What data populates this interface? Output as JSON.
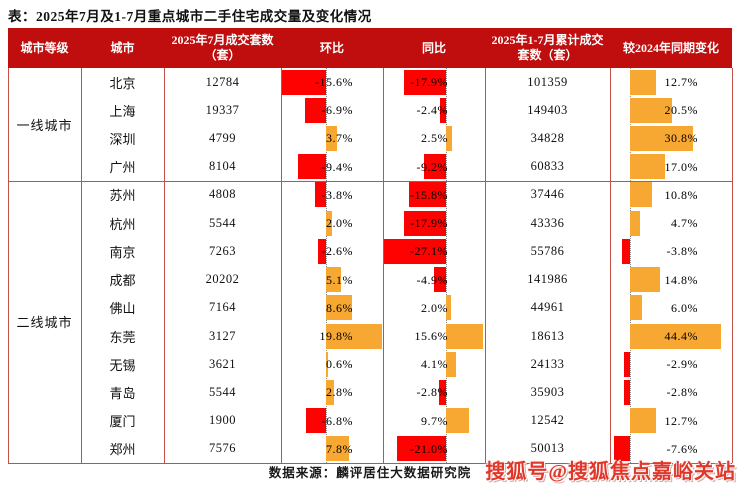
{
  "title": "表：2025年7月及1-7月重点城市二手住宅成交量及变化情况",
  "source": "数据来源：麟评居住大数据研究院",
  "watermark": "搜狐号@搜狐焦点嘉峪关站",
  "colors": {
    "header_bg": "#c00d0d",
    "header_text": "#ffffff",
    "border": "#c4504a",
    "negative_bar": "#fe0101",
    "positive_bar": "#f7a832",
    "watermark_red": "#e0372b"
  },
  "chart_data": {
    "type": "table",
    "title": "表：2025年7月及1-7月重点城市二手住宅成交量及变化情况",
    "legend_note": "red bars = negative change, orange bars = positive change, bars anchored on dotted zero baseline",
    "columns": [
      {
        "key": "tier",
        "label": "城市等级"
      },
      {
        "key": "city",
        "label": "城市"
      },
      {
        "key": "jul",
        "label": "2025年7月成交套数（套）"
      },
      {
        "key": "mom",
        "label": "环比"
      },
      {
        "key": "yoy",
        "label": "同比"
      },
      {
        "key": "cum",
        "label": "2025年1-7月累计成交套数（套）"
      },
      {
        "key": "vs2024",
        "label": "较2024年同期变化"
      }
    ],
    "tiers": [
      {
        "label": "一线城市",
        "cities": [
          {
            "city": "北京",
            "jul": "12784",
            "mom": -15.6,
            "yoy": -17.9,
            "cum": "101359",
            "vs2024": 12.7
          },
          {
            "city": "上海",
            "jul": "19337",
            "mom": -6.9,
            "yoy": -2.4,
            "cum": "149403",
            "vs2024": 20.5
          },
          {
            "city": "深圳",
            "jul": "4799",
            "mom": 3.7,
            "yoy": 2.5,
            "cum": "34828",
            "vs2024": 30.8
          },
          {
            "city": "广州",
            "jul": "8104",
            "mom": -9.4,
            "yoy": -9.2,
            "cum": "60833",
            "vs2024": 17.0
          }
        ]
      },
      {
        "label": "二线城市",
        "cities": [
          {
            "city": "苏州",
            "jul": "4808",
            "mom": -3.8,
            "yoy": -15.8,
            "cum": "37446",
            "vs2024": 10.8
          },
          {
            "city": "杭州",
            "jul": "5544",
            "mom": 2.0,
            "yoy": -17.9,
            "cum": "43336",
            "vs2024": 4.7
          },
          {
            "city": "南京",
            "jul": "7263",
            "mom": -2.6,
            "yoy": -27.1,
            "cum": "55786",
            "vs2024": -3.8
          },
          {
            "city": "成都",
            "jul": "20202",
            "mom": 5.1,
            "yoy": -4.9,
            "cum": "141986",
            "vs2024": 14.8
          },
          {
            "city": "佛山",
            "jul": "7164",
            "mom": 8.6,
            "yoy": 2.0,
            "cum": "44961",
            "vs2024": 6.0
          },
          {
            "city": "东莞",
            "jul": "3127",
            "mom": 19.8,
            "yoy": 15.6,
            "cum": "18613",
            "vs2024": 44.4
          },
          {
            "city": "无锡",
            "jul": "3621",
            "mom": 0.6,
            "yoy": 4.1,
            "cum": "24133",
            "vs2024": -2.9
          },
          {
            "city": "青岛",
            "jul": "5544",
            "mom": 2.8,
            "yoy": -2.8,
            "cum": "35903",
            "vs2024": -2.8
          },
          {
            "city": "厦门",
            "jul": "1900",
            "mom": -6.8,
            "yoy": 9.7,
            "cum": "12542",
            "vs2024": 12.7
          },
          {
            "city": "郑州",
            "jul": "7576",
            "mom": 7.8,
            "yoy": -21.0,
            "cum": "50013",
            "vs2024": -7.6
          }
        ]
      }
    ]
  }
}
